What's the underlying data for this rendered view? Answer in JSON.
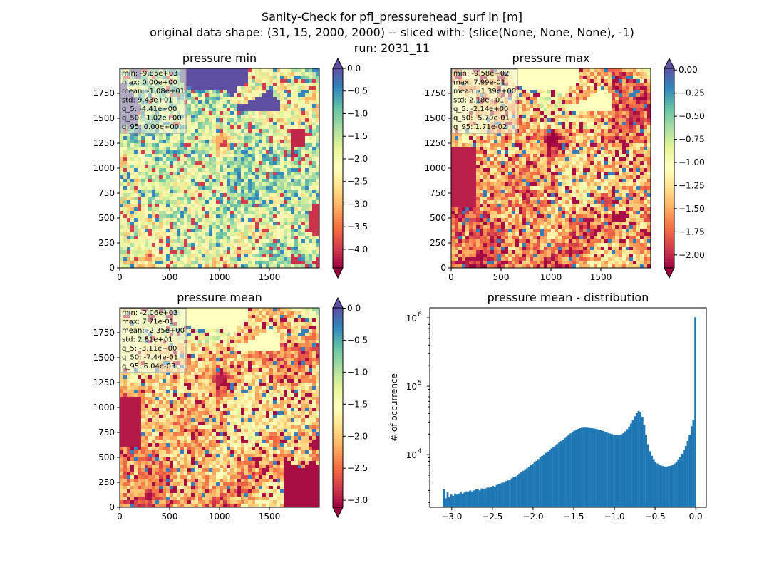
{
  "suptitle": {
    "line1": "Sanity-Check for pfl_pressurehead_surf in [m]",
    "line2": "original data shape: (31, 15, 2000, 2000) -- sliced with: (slice(None, None, None), -1)",
    "line3": "run: 2031_11"
  },
  "chart_data": [
    {
      "type": "heatmap",
      "title": "pressure min",
      "colormap": "Spectral",
      "colorbar": {
        "range": [
          -4.41,
          0.0
        ],
        "extend": "both",
        "ticks": [
          "0.0",
          "−0.5",
          "−1.0",
          "−1.5",
          "−2.0",
          "−2.5",
          "−3.0",
          "−3.5",
          "−4.0"
        ],
        "tick_values": [
          0.0,
          -0.5,
          -1.0,
          -1.5,
          -2.0,
          -2.5,
          -3.0,
          -3.5,
          -4.0
        ]
      },
      "xticks": [
        "0",
        "500",
        "1000",
        "1500"
      ],
      "yticks": [
        "0",
        "250",
        "500",
        "750",
        "1000",
        "1250",
        "1500",
        "1750"
      ],
      "xlim": [
        0,
        2000
      ],
      "ylim": [
        0,
        2000
      ],
      "stats": [
        "min: -9.85e+03",
        "max: 0.00e+00",
        "mean: -1.08e+01",
        "std: 9.43e+01",
        "q_5: -4.41e+00",
        "q_50: -1.02e+00",
        "q_95: 0.00e+00"
      ]
    },
    {
      "type": "heatmap",
      "title": "pressure max",
      "colormap": "Spectral",
      "colorbar": {
        "range": [
          -2.14,
          0.0171
        ],
        "extend": "both",
        "ticks": [
          "0.00",
          "−0.25",
          "−0.50",
          "−0.75",
          "−1.00",
          "−1.25",
          "−1.50",
          "−1.75",
          "−2.00"
        ],
        "tick_values": [
          0.0,
          -0.25,
          -0.5,
          -0.75,
          -1.0,
          -1.25,
          -1.5,
          -1.75,
          -2.0
        ]
      },
      "xticks": [
        "0",
        "500",
        "1000",
        "1500"
      ],
      "yticks": [
        "0",
        "250",
        "500",
        "750",
        "1000",
        "1250",
        "1500",
        "1750"
      ],
      "xlim": [
        0,
        2000
      ],
      "ylim": [
        0,
        2000
      ],
      "stats": [
        "min: -9.58e+02",
        "max: 7.99e-01",
        "mean: -1.39e+00",
        "std: 2.18e+01",
        "q_5: -2.14e+00",
        "q_50: -5.79e-01",
        "q_95: 1.71e-02"
      ]
    },
    {
      "type": "heatmap",
      "title": "pressure mean",
      "colormap": "Spectral",
      "colorbar": {
        "range": [
          -3.11,
          0.006
        ],
        "extend": "both",
        "ticks": [
          "0.0",
          "−0.5",
          "−1.0",
          "−1.5",
          "−2.0",
          "−2.5",
          "−3.0"
        ],
        "tick_values": [
          0.0,
          -0.5,
          -1.0,
          -1.5,
          -2.0,
          -2.5,
          -3.0
        ]
      },
      "xticks": [
        "0",
        "500",
        "1000",
        "1500"
      ],
      "yticks": [
        "0",
        "250",
        "500",
        "750",
        "1000",
        "1250",
        "1500",
        "1750"
      ],
      "xlim": [
        0,
        2000
      ],
      "ylim": [
        0,
        2000
      ],
      "stats": [
        "min: -2.06e+03",
        "max: 7.71e-01",
        "mean: -2.35e+00",
        "std: 2.81e+01",
        "q_5: -3.11e+00",
        "q_50: -7.44e-01",
        "q_95: 6.04e-03"
      ]
    },
    {
      "type": "bar",
      "title": "pressure mean - distribution",
      "xlabel": "",
      "ylabel": "# of occurrence",
      "yscale": "log",
      "xlim": [
        -3.27,
        0.13
      ],
      "ylim": [
        1700,
        1400000
      ],
      "xticks": [
        -3.0,
        -2.5,
        -2.0,
        -1.5,
        -1.0,
        -0.5,
        0.0
      ],
      "xtick_labels": [
        "−3.0",
        "−2.5",
        "−2.0",
        "−1.5",
        "−1.0",
        "−0.5",
        "0.0"
      ],
      "yticks": [
        10000,
        100000,
        1000000
      ],
      "ytick_labels": [
        "10",
        "10",
        "10"
      ],
      "ytick_exponents": [
        "4",
        "5",
        "6"
      ],
      "color": "#1f77b4",
      "bin_range": [
        -3.11,
        0.006
      ],
      "counts": [
        3100,
        2300,
        2800,
        2400,
        2600,
        2500,
        2700,
        2600,
        2700,
        2800,
        2700,
        2800,
        2900,
        2900,
        3000,
        2900,
        3000,
        3100,
        3100,
        3000,
        3200,
        3100,
        3200,
        3300,
        3300,
        3400,
        3500,
        3400,
        3600,
        3700,
        3800,
        3900,
        3900,
        4100,
        4200,
        4300,
        4500,
        4700,
        4800,
        5100,
        5300,
        5500,
        5800,
        6100,
        6300,
        6600,
        7000,
        7300,
        7700,
        8100,
        8600,
        9100,
        9600,
        10100,
        10600,
        11100,
        11700,
        12300,
        13000,
        13600,
        14300,
        15000,
        15800,
        16600,
        17500,
        18400,
        19400,
        20400,
        21500,
        22400,
        23200,
        23800,
        24300,
        24600,
        24800,
        24800,
        24700,
        24500,
        24400,
        24200,
        23900,
        23600,
        23200,
        22700,
        22200,
        21700,
        21200,
        20700,
        20300,
        19900,
        19500,
        19300,
        19200,
        19400,
        19800,
        20600,
        21900,
        23600,
        25700,
        28500,
        32000,
        36300,
        40800,
        43500,
        42200,
        35800,
        27200,
        19400,
        14200,
        11200,
        9600,
        8600,
        7900,
        7400,
        7100,
        6900,
        6800,
        6700,
        6700,
        6800,
        6900,
        7100,
        7400,
        7900,
        8500,
        9300,
        10300,
        11600,
        13400,
        15800,
        19500,
        26000,
        32000,
        1020000
      ]
    }
  ]
}
